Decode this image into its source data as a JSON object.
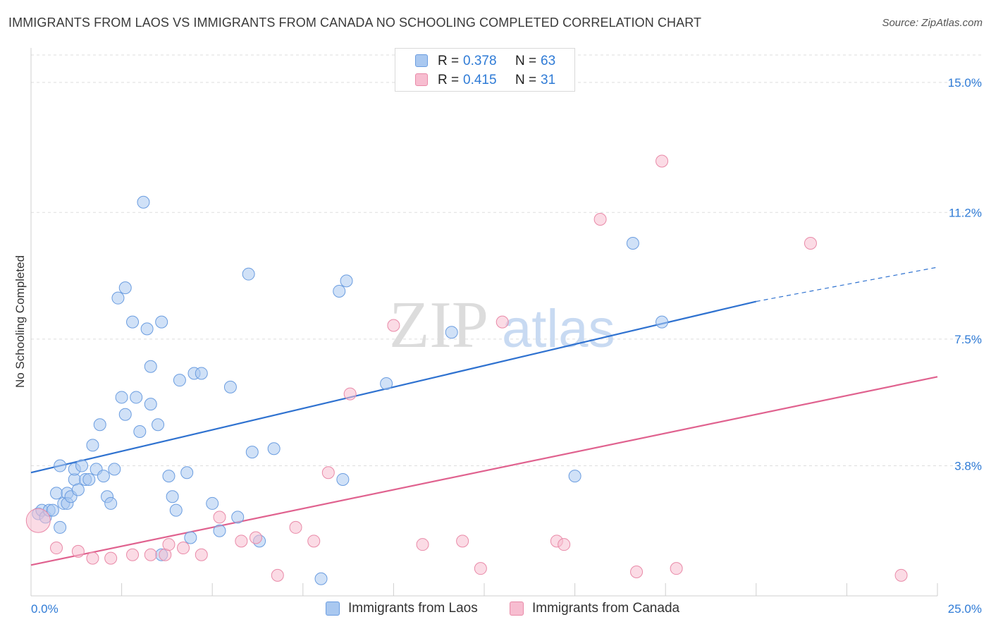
{
  "title": "IMMIGRANTS FROM LAOS VS IMMIGRANTS FROM CANADA NO SCHOOLING COMPLETED CORRELATION CHART",
  "source": "Source: ZipAtlas.com",
  "watermark": {
    "zip": "ZIP",
    "atlas": "atlas"
  },
  "legend": {
    "rows": [
      {
        "r_label": "R =",
        "r_value": "0.378",
        "n_label": "N =",
        "n_value": "63"
      },
      {
        "r_label": "R =",
        "r_value": "0.415",
        "n_label": "N =",
        "n_value": "31"
      }
    ]
  },
  "chart_data": {
    "type": "scatter",
    "title": "IMMIGRANTS FROM LAOS VS IMMIGRANTS FROM CANADA NO SCHOOLING COMPLETED CORRELATION CHART",
    "xlabel": "",
    "ylabel": "No Schooling Completed",
    "xlim": [
      0,
      25
    ],
    "ylim": [
      0,
      15.8
    ],
    "x_tick_labels": [
      "0.0%",
      "25.0%"
    ],
    "y_ticks": [
      3.8,
      7.5,
      11.2,
      15.0
    ],
    "y_tick_labels": [
      "3.8%",
      "7.5%",
      "11.2%",
      "15.0%"
    ],
    "grid": true,
    "legend_position": "top-center",
    "series": [
      {
        "name": "Immigrants from Laos",
        "color": "#a9c8f0",
        "edge": "#6b9de0",
        "trend_color": "#2f72d0",
        "trend": {
          "x0": 0,
          "y0": 3.6,
          "x1": 20,
          "y1": 8.6,
          "x_dash_end": 25,
          "y_dash_end": 9.6
        },
        "points": [
          {
            "x": 0.2,
            "y": 2.4
          },
          {
            "x": 0.3,
            "y": 2.5
          },
          {
            "x": 0.4,
            "y": 2.3
          },
          {
            "x": 0.5,
            "y": 2.5
          },
          {
            "x": 0.6,
            "y": 2.5
          },
          {
            "x": 0.7,
            "y": 3.0
          },
          {
            "x": 0.8,
            "y": 3.8
          },
          {
            "x": 0.8,
            "y": 2.0
          },
          {
            "x": 0.9,
            "y": 2.7
          },
          {
            "x": 1.0,
            "y": 3.0
          },
          {
            "x": 1.0,
            "y": 2.7
          },
          {
            "x": 1.1,
            "y": 2.9
          },
          {
            "x": 1.2,
            "y": 3.4
          },
          {
            "x": 1.2,
            "y": 3.7
          },
          {
            "x": 1.3,
            "y": 3.1
          },
          {
            "x": 1.4,
            "y": 3.8
          },
          {
            "x": 1.5,
            "y": 3.4
          },
          {
            "x": 1.6,
            "y": 3.4
          },
          {
            "x": 1.7,
            "y": 4.4
          },
          {
            "x": 1.8,
            "y": 3.7
          },
          {
            "x": 1.9,
            "y": 5.0
          },
          {
            "x": 2.0,
            "y": 3.5
          },
          {
            "x": 2.1,
            "y": 2.9
          },
          {
            "x": 2.2,
            "y": 2.7
          },
          {
            "x": 2.3,
            "y": 3.7
          },
          {
            "x": 2.4,
            "y": 8.7
          },
          {
            "x": 2.5,
            "y": 5.8
          },
          {
            "x": 2.6,
            "y": 9.0
          },
          {
            "x": 2.6,
            "y": 5.3
          },
          {
            "x": 2.8,
            "y": 8.0
          },
          {
            "x": 2.9,
            "y": 5.8
          },
          {
            "x": 3.0,
            "y": 4.8
          },
          {
            "x": 3.1,
            "y": 11.5
          },
          {
            "x": 3.2,
            "y": 7.8
          },
          {
            "x": 3.3,
            "y": 5.6
          },
          {
            "x": 3.3,
            "y": 6.7
          },
          {
            "x": 3.5,
            "y": 5.0
          },
          {
            "x": 3.6,
            "y": 1.2
          },
          {
            "x": 3.6,
            "y": 8.0
          },
          {
            "x": 3.8,
            "y": 3.5
          },
          {
            "x": 3.9,
            "y": 2.9
          },
          {
            "x": 4.0,
            "y": 2.5
          },
          {
            "x": 4.1,
            "y": 6.3
          },
          {
            "x": 4.3,
            "y": 3.6
          },
          {
            "x": 4.4,
            "y": 1.7
          },
          {
            "x": 4.5,
            "y": 6.5
          },
          {
            "x": 4.7,
            "y": 6.5
          },
          {
            "x": 5.0,
            "y": 2.7
          },
          {
            "x": 5.2,
            "y": 1.9
          },
          {
            "x": 5.5,
            "y": 6.1
          },
          {
            "x": 5.7,
            "y": 2.3
          },
          {
            "x": 6.0,
            "y": 9.4
          },
          {
            "x": 6.1,
            "y": 4.2
          },
          {
            "x": 6.3,
            "y": 1.6
          },
          {
            "x": 6.7,
            "y": 4.3
          },
          {
            "x": 8.0,
            "y": 0.5
          },
          {
            "x": 8.5,
            "y": 8.9
          },
          {
            "x": 8.6,
            "y": 3.4
          },
          {
            "x": 8.7,
            "y": 9.2
          },
          {
            "x": 9.8,
            "y": 6.2
          },
          {
            "x": 11.6,
            "y": 7.7
          },
          {
            "x": 15.0,
            "y": 3.5
          },
          {
            "x": 16.6,
            "y": 10.3
          },
          {
            "x": 17.4,
            "y": 8.0
          }
        ]
      },
      {
        "name": "Immigrants from Canada",
        "color": "#f7bdd0",
        "edge": "#e98aa8",
        "trend_color": "#e0628f",
        "trend": {
          "x0": 0,
          "y0": 0.9,
          "x1": 25,
          "y1": 6.4
        },
        "points": [
          {
            "x": 0.2,
            "y": 2.2
          },
          {
            "x": 0.7,
            "y": 1.4
          },
          {
            "x": 1.3,
            "y": 1.3
          },
          {
            "x": 1.7,
            "y": 1.1
          },
          {
            "x": 2.2,
            "y": 1.1
          },
          {
            "x": 2.8,
            "y": 1.2
          },
          {
            "x": 3.3,
            "y": 1.2
          },
          {
            "x": 3.7,
            "y": 1.2
          },
          {
            "x": 3.8,
            "y": 1.5
          },
          {
            "x": 4.2,
            "y": 1.4
          },
          {
            "x": 4.7,
            "y": 1.2
          },
          {
            "x": 5.2,
            "y": 2.3
          },
          {
            "x": 5.8,
            "y": 1.6
          },
          {
            "x": 6.2,
            "y": 1.7
          },
          {
            "x": 6.8,
            "y": 0.6
          },
          {
            "x": 7.3,
            "y": 2.0
          },
          {
            "x": 7.8,
            "y": 1.6
          },
          {
            "x": 8.2,
            "y": 3.6
          },
          {
            "x": 8.8,
            "y": 5.9
          },
          {
            "x": 10.0,
            "y": 7.9
          },
          {
            "x": 10.8,
            "y": 1.5
          },
          {
            "x": 11.9,
            "y": 1.6
          },
          {
            "x": 12.4,
            "y": 0.8
          },
          {
            "x": 13.0,
            "y": 8.0
          },
          {
            "x": 14.5,
            "y": 1.6
          },
          {
            "x": 14.7,
            "y": 1.5
          },
          {
            "x": 15.7,
            "y": 11.0
          },
          {
            "x": 16.7,
            "y": 0.7
          },
          {
            "x": 17.4,
            "y": 12.7
          },
          {
            "x": 17.8,
            "y": 0.8
          },
          {
            "x": 21.5,
            "y": 10.3
          },
          {
            "x": 24.0,
            "y": 0.6
          }
        ]
      }
    ]
  }
}
